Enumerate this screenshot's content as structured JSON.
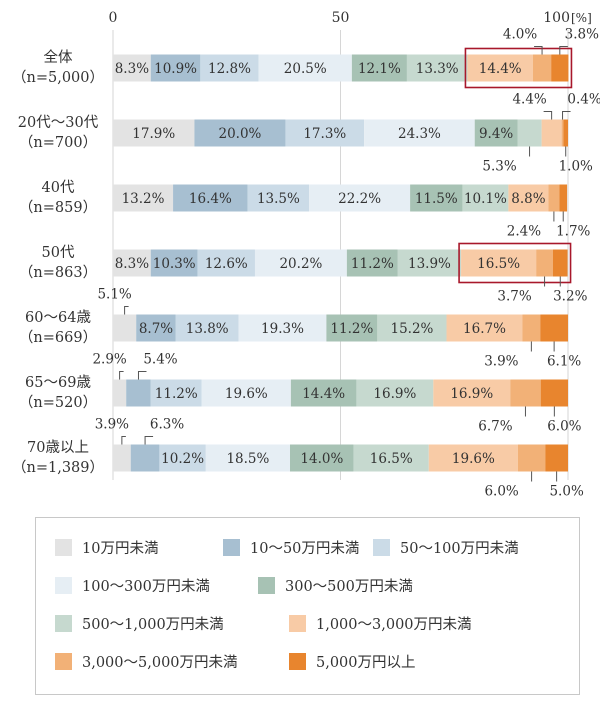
{
  "chart_data": {
    "type": "bar",
    "orientation": "horizontal-stacked-100",
    "x_ticks": [
      "0",
      "50",
      "100"
    ],
    "x_unit": "[%]",
    "xlim": [
      0,
      100
    ],
    "grid": true,
    "legend_position": "bottom",
    "categories": [
      {
        "label_lines": [
          "全体",
          "（n=5,000）"
        ]
      },
      {
        "label_lines": [
          "20代～30代",
          "（n=700）"
        ]
      },
      {
        "label_lines": [
          "40代",
          "（n=859）"
        ]
      },
      {
        "label_lines": [
          "50代",
          "（n=863）"
        ]
      },
      {
        "label_lines": [
          "60～64歳",
          "（n=669）"
        ]
      },
      {
        "label_lines": [
          "65～69歳",
          "（n=520）"
        ]
      },
      {
        "label_lines": [
          "70歳以上",
          "（n=1,389）"
        ]
      }
    ],
    "series": [
      {
        "name": "10万円未満",
        "color": "#e3e3e3",
        "values": [
          8.3,
          17.9,
          13.2,
          8.3,
          5.1,
          2.9,
          3.9
        ]
      },
      {
        "name": "10～50万円未満",
        "color": "#a7bfd1",
        "values": [
          10.9,
          20.0,
          16.4,
          10.3,
          8.7,
          5.4,
          6.3
        ]
      },
      {
        "name": "50～100万円未満",
        "color": "#cbdbe7",
        "values": [
          12.8,
          17.3,
          13.5,
          12.6,
          13.8,
          11.2,
          10.2
        ]
      },
      {
        "name": "100～300万円未満",
        "color": "#e6eef4",
        "values": [
          20.5,
          24.3,
          22.2,
          20.2,
          19.3,
          19.6,
          18.5
        ]
      },
      {
        "name": "300～500万円未満",
        "color": "#a7c2b4",
        "values": [
          12.1,
          9.4,
          11.5,
          11.2,
          11.2,
          14.4,
          14.0
        ]
      },
      {
        "name": "500～1,000万円未満",
        "color": "#c6d9cf",
        "values": [
          13.3,
          5.3,
          10.1,
          13.9,
          15.2,
          16.9,
          16.5
        ]
      },
      {
        "name": "1,000～3,000万円未満",
        "color": "#f8cba6",
        "values": [
          14.4,
          4.4,
          8.8,
          16.5,
          16.7,
          16.9,
          19.6
        ]
      },
      {
        "name": "3,000～5,000万円未満",
        "color": "#f2b177",
        "values": [
          4.0,
          0.4,
          2.4,
          3.7,
          3.9,
          6.7,
          6.0
        ]
      },
      {
        "name": "5,000万円以上",
        "color": "#e8852e",
        "values": [
          3.8,
          1.0,
          1.7,
          3.2,
          6.1,
          6.0,
          5.0
        ]
      }
    ],
    "inside_labels": [
      [
        "8.3%",
        "10.9%",
        "12.8%",
        "20.5%",
        "12.1%",
        "13.3%",
        "14.4%",
        "",
        ""
      ],
      [
        "17.9%",
        "20.0%",
        "17.3%",
        "24.3%",
        "9.4%",
        "",
        "",
        "",
        ""
      ],
      [
        "13.2%",
        "16.4%",
        "13.5%",
        "22.2%",
        "11.5%",
        "10.1%",
        "8.8%",
        "",
        ""
      ],
      [
        "8.3%",
        "10.3%",
        "12.6%",
        "20.2%",
        "11.2%",
        "13.9%",
        "16.5%",
        "",
        ""
      ],
      [
        "",
        "8.7%",
        "13.8%",
        "19.3%",
        "11.2%",
        "15.2%",
        "16.7%",
        "",
        ""
      ],
      [
        "",
        "",
        "11.2%",
        "19.6%",
        "14.4%",
        "16.9%",
        "16.9%",
        "",
        ""
      ],
      [
        "",
        "",
        "10.2%",
        "18.5%",
        "14.0%",
        "16.5%",
        "19.6%",
        "",
        ""
      ]
    ],
    "callouts": [
      {
        "row": 0,
        "seg": 7,
        "text": "4.0%",
        "side": "above"
      },
      {
        "row": 0,
        "seg": 8,
        "text": "3.8%",
        "side": "above"
      },
      {
        "row": 1,
        "seg": 6,
        "text": "4.4%",
        "side": "above"
      },
      {
        "row": 1,
        "seg": 7,
        "text": "0.4%",
        "side": "above"
      },
      {
        "row": 1,
        "seg": 5,
        "text": "5.3%",
        "side": "below"
      },
      {
        "row": 1,
        "seg": 8,
        "text": "1.0%",
        "side": "below"
      },
      {
        "row": 2,
        "seg": 7,
        "text": "2.4%",
        "side": "below"
      },
      {
        "row": 2,
        "seg": 8,
        "text": "1.7%",
        "side": "below"
      },
      {
        "row": 3,
        "seg": 7,
        "text": "3.7%",
        "side": "below"
      },
      {
        "row": 3,
        "seg": 8,
        "text": "3.2%",
        "side": "below"
      },
      {
        "row": 4,
        "seg": 0,
        "text": "5.1%",
        "side": "above"
      },
      {
        "row": 4,
        "seg": 7,
        "text": "3.9%",
        "side": "below"
      },
      {
        "row": 4,
        "seg": 8,
        "text": "6.1%",
        "side": "below"
      },
      {
        "row": 5,
        "seg": 0,
        "text": "2.9%",
        "side": "above"
      },
      {
        "row": 5,
        "seg": 1,
        "text": "5.4%",
        "side": "above"
      },
      {
        "row": 5,
        "seg": 7,
        "text": "6.7%",
        "side": "below"
      },
      {
        "row": 5,
        "seg": 8,
        "text": "6.0%",
        "side": "below"
      },
      {
        "row": 6,
        "seg": 0,
        "text": "3.9%",
        "side": "above"
      },
      {
        "row": 6,
        "seg": 1,
        "text": "6.3%",
        "side": "above"
      },
      {
        "row": 6,
        "seg": 7,
        "text": "6.0%",
        "side": "below"
      },
      {
        "row": 6,
        "seg": 8,
        "text": "5.0%",
        "side": "below"
      }
    ],
    "highlights": [
      {
        "row": 0,
        "from_series": 6,
        "to_series": 8,
        "color": "#a8182b"
      },
      {
        "row": 3,
        "from_series": 6,
        "to_series": 8,
        "color": "#a8182b"
      }
    ]
  }
}
